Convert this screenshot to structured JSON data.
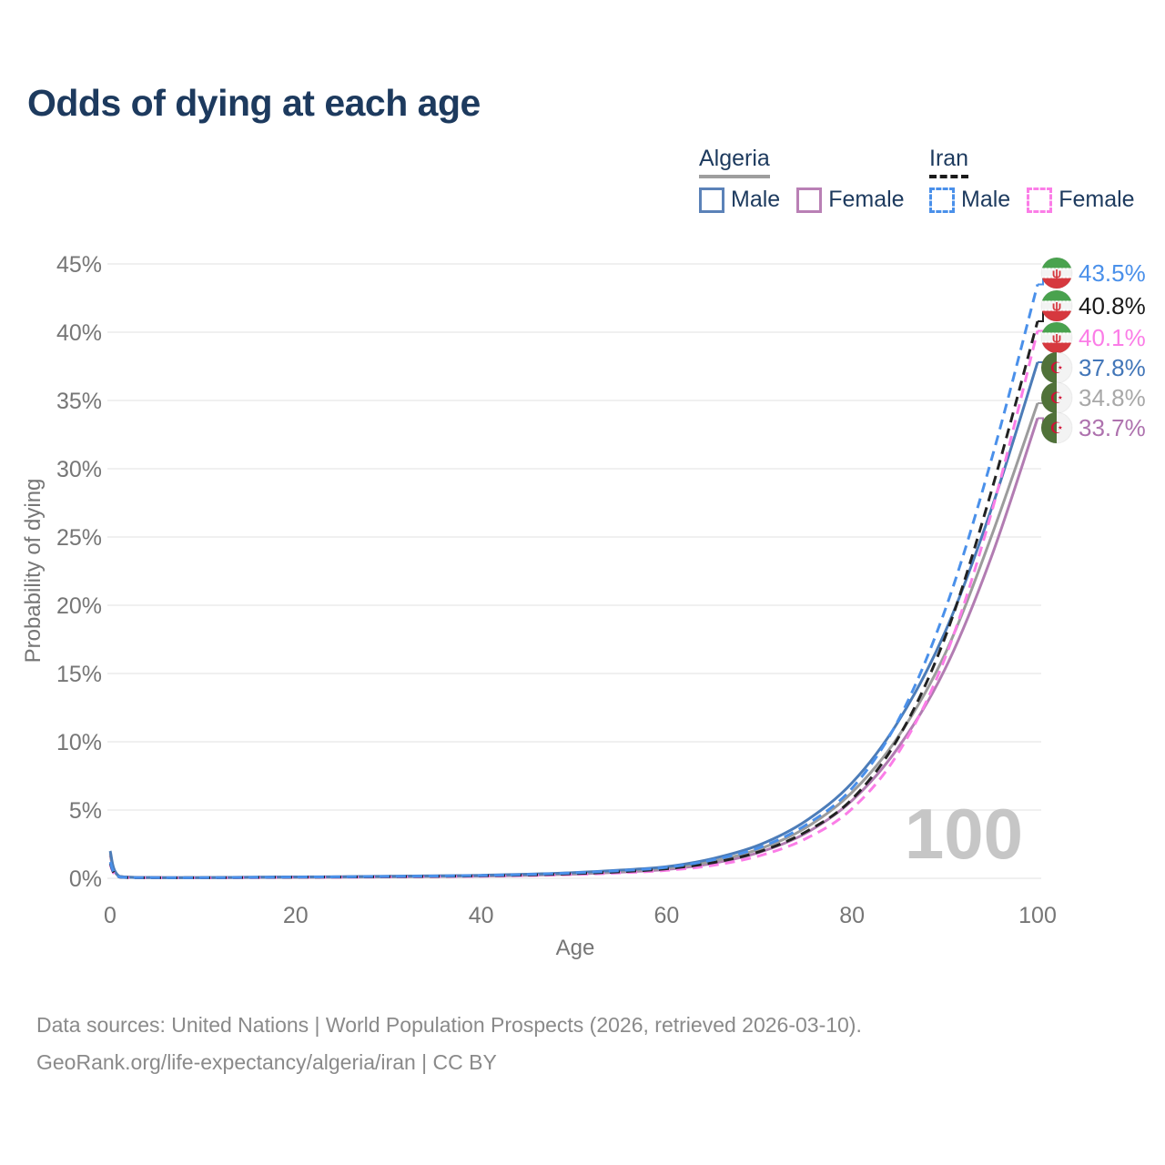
{
  "title": "Odds of dying at each age",
  "legend": {
    "groups": [
      {
        "label": "Algeria",
        "line_style": "solid",
        "underline_color": "#9e9e9e",
        "items": [
          {
            "label": "Male",
            "color": "#5b82b8",
            "dash": false
          },
          {
            "label": "Female",
            "color": "#b980b5",
            "dash": false
          }
        ]
      },
      {
        "label": "Iran",
        "line_style": "dashed",
        "underline_color": "#1a1a1a",
        "items": [
          {
            "label": "Male",
            "color": "#4a90ea",
            "dash": true
          },
          {
            "label": "Female",
            "color": "#fb7de7",
            "dash": true
          }
        ]
      }
    ]
  },
  "chart_data": {
    "type": "line",
    "title": "Odds of dying at each age",
    "xlabel": "Age",
    "ylabel": "Probability of dying",
    "xlim": [
      0,
      100
    ],
    "ylim": [
      0,
      45
    ],
    "grid": true,
    "x_ticks": [
      {
        "v": 0,
        "label": "0"
      },
      {
        "v": 20,
        "label": "20"
      },
      {
        "v": 40,
        "label": "40"
      },
      {
        "v": 60,
        "label": "60"
      },
      {
        "v": 80,
        "label": "80"
      },
      {
        "v": 100,
        "label": "100"
      }
    ],
    "y_ticks": [
      {
        "v": 0,
        "label": "0%"
      },
      {
        "v": 5,
        "label": "5%"
      },
      {
        "v": 10,
        "label": "10%"
      },
      {
        "v": 15,
        "label": "15%"
      },
      {
        "v": 20,
        "label": "20%"
      },
      {
        "v": 25,
        "label": "25%"
      },
      {
        "v": 30,
        "label": "30%"
      },
      {
        "v": 35,
        "label": "35%"
      },
      {
        "v": 40,
        "label": "40%"
      },
      {
        "v": 45,
        "label": "45%"
      }
    ],
    "ages": [
      0,
      1,
      5,
      10,
      15,
      20,
      25,
      30,
      35,
      40,
      45,
      50,
      55,
      60,
      65,
      70,
      75,
      80,
      85,
      90,
      95,
      100
    ],
    "series": [
      {
        "id": "algeria-female",
        "country": "Algeria",
        "sex": "Female",
        "color": "#b27cb2",
        "dash": false,
        "end_value": 33.7,
        "end_label": "33.7%",
        "label_color": "#ae72ae",
        "flag": "algeria",
        "values": [
          1.7,
          0.13,
          0.05,
          0.04,
          0.06,
          0.07,
          0.08,
          0.1,
          0.13,
          0.16,
          0.22,
          0.31,
          0.45,
          0.65,
          1.1,
          1.9,
          3.3,
          5.7,
          9.6,
          15.3,
          23.5,
          33.7
        ]
      },
      {
        "id": "algeria-both-sexes",
        "country": "Algeria",
        "sex": "Both sexes",
        "color": "#9c9c9c",
        "dash": false,
        "end_value": 34.8,
        "end_label": "34.8%",
        "label_color": "#a8a8a8",
        "flag": "algeria",
        "values": [
          1.85,
          0.14,
          0.05,
          0.045,
          0.07,
          0.085,
          0.1,
          0.12,
          0.15,
          0.19,
          0.26,
          0.36,
          0.52,
          0.75,
          1.25,
          2.15,
          3.7,
          6.3,
          10.4,
          16.4,
          25.0,
          34.8
        ]
      },
      {
        "id": "algeria-male",
        "country": "Algeria",
        "sex": "Male",
        "color": "#4c7cb8",
        "dash": false,
        "end_value": 37.8,
        "end_label": "37.8%",
        "label_color": "#4276b8",
        "flag": "algeria",
        "values": [
          2.0,
          0.15,
          0.06,
          0.05,
          0.08,
          0.1,
          0.12,
          0.15,
          0.18,
          0.22,
          0.3,
          0.42,
          0.6,
          0.85,
          1.45,
          2.45,
          4.2,
          7.0,
          11.5,
          18.0,
          27.0,
          37.8
        ]
      },
      {
        "id": "iran-female",
        "country": "Iran",
        "sex": "Female",
        "color": "#fb7de7",
        "dash": true,
        "end_value": 40.1,
        "end_label": "40.1%",
        "label_color": "#fb7de7",
        "flag": "iran",
        "values": [
          1.0,
          0.08,
          0.04,
          0.035,
          0.05,
          0.065,
          0.08,
          0.1,
          0.12,
          0.15,
          0.2,
          0.28,
          0.4,
          0.58,
          0.95,
          1.65,
          2.9,
          5.1,
          9.2,
          16.1,
          26.7,
          40.1
        ]
      },
      {
        "id": "iran-both-sexes",
        "country": "Iran",
        "sex": "Both sexes",
        "color": "#222222",
        "dash": true,
        "end_value": 40.8,
        "end_label": "40.8%",
        "label_color": "#1a1a1a",
        "flag": "iran",
        "values": [
          1.1,
          0.09,
          0.04,
          0.04,
          0.06,
          0.08,
          0.095,
          0.12,
          0.14,
          0.18,
          0.24,
          0.34,
          0.48,
          0.7,
          1.15,
          1.95,
          3.4,
          5.8,
          10.3,
          17.6,
          28.3,
          40.8
        ]
      },
      {
        "id": "iran-male",
        "country": "Iran",
        "sex": "Male",
        "color": "#4a90ea",
        "dash": true,
        "end_value": 43.5,
        "end_label": "43.5%",
        "label_color": "#4a90ea",
        "flag": "iran",
        "values": [
          1.2,
          0.1,
          0.05,
          0.045,
          0.07,
          0.09,
          0.11,
          0.14,
          0.17,
          0.21,
          0.28,
          0.4,
          0.56,
          0.8,
          1.35,
          2.25,
          3.9,
          6.6,
          11.6,
          19.6,
          30.6,
          43.5
        ]
      }
    ],
    "watermark": "100"
  },
  "colors": {
    "title_text": "#1d3a5e",
    "axis_text": "#767676",
    "grid_line": "#ececec",
    "watermark_text": "#c6c6c6",
    "footer_text": "#8a8a8a"
  },
  "footer": {
    "line1": "Data sources: United Nations | World Population Prospects (2026, retrieved 2026-03-10).",
    "line2": "GeoRank.org/life-expectancy/algeria/iran | CC BY"
  }
}
